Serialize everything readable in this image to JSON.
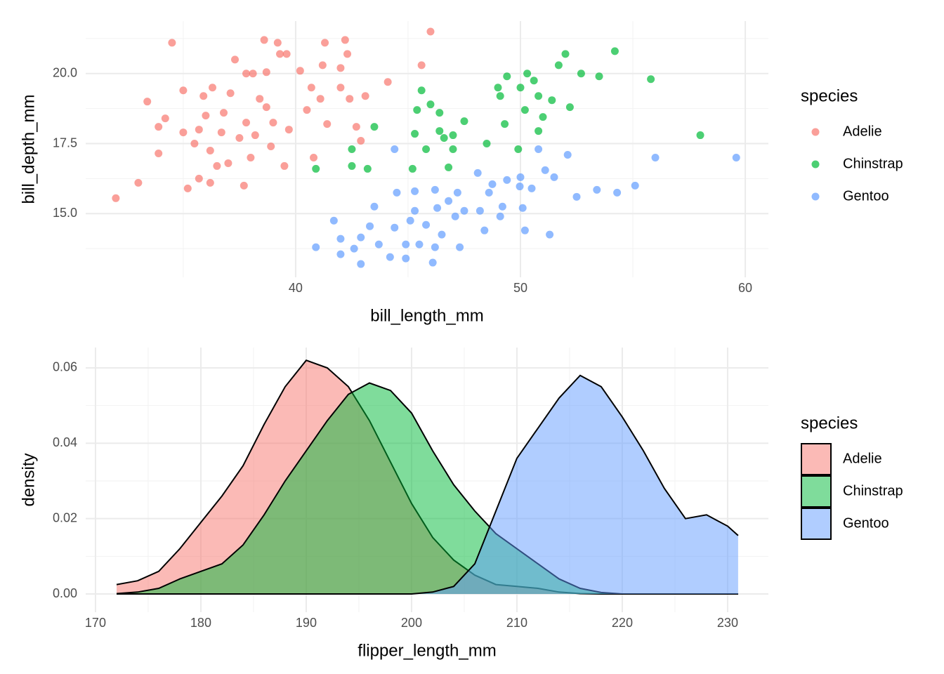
{
  "chart_data": [
    {
      "type": "scatter",
      "x_label": "bill_length_mm",
      "y_label": "bill_depth_mm",
      "legend_title": "species",
      "xlim": [
        30.66,
        61.03
      ],
      "ylim": [
        12.725,
        21.875
      ],
      "xticks": [
        40,
        50,
        60
      ],
      "yticks": [
        {
          "value": 15,
          "label": "15.0"
        },
        17.5,
        {
          "value": 20,
          "label": "20.0"
        }
      ],
      "grid": true,
      "legend": "right",
      "series": [
        {
          "name": "Adelie",
          "color": "#F8766D",
          "x": [
            32.0,
            33.0,
            33.4,
            34.5,
            33.9,
            34.2,
            33.9,
            35.0,
            35.0,
            35.2,
            35.7,
            35.5,
            35.7,
            35.9,
            36.0,
            36.2,
            36.2,
            36.3,
            36.7,
            36.8,
            37.0,
            37.1,
            37.3,
            37.5,
            37.7,
            37.8,
            38.0,
            38.2,
            37.8,
            38.1,
            38.6,
            39.2,
            38.7,
            38.9,
            39.0,
            39.3,
            39.6,
            39.5,
            39.7,
            40.2,
            40.5,
            40.7,
            40.8,
            41.3,
            41.2,
            41.1,
            41.4,
            42.0,
            42.0,
            42.2,
            42.3,
            42.4,
            42.7,
            42.9,
            43.1,
            44.1,
            46.0,
            45.6,
            38.7,
            38.4,
            36.5
          ],
          "values": [
            15.55,
            16.1,
            19.0,
            21.1,
            18.1,
            18.4,
            17.15,
            19.4,
            17.9,
            15.9,
            16.25,
            17.5,
            18.0,
            19.2,
            18.5,
            17.25,
            16.1,
            19.5,
            17.9,
            18.6,
            16.8,
            19.3,
            20.5,
            17.7,
            16.0,
            18.25,
            17.0,
            17.8,
            20.0,
            20.0,
            21.2,
            21.1,
            18.8,
            17.4,
            18.25,
            20.7,
            20.7,
            16.7,
            18.0,
            20.1,
            18.7,
            19.5,
            17.0,
            21.1,
            20.3,
            19.1,
            18.2,
            20.2,
            19.5,
            21.2,
            20.7,
            19.1,
            18.1,
            17.6,
            19.2,
            19.7,
            21.5,
            20.3,
            20.05,
            19.1,
            16.7
          ]
        },
        {
          "name": "Chinstrap",
          "color": "#00BA38",
          "x": [
            40.9,
            42.5,
            42.5,
            43.2,
            43.5,
            45.2,
            45.6,
            45.4,
            45.3,
            45.8,
            46.0,
            46.4,
            46.4,
            46.6,
            46.8,
            47.0,
            47.5,
            47.0,
            48.5,
            49.0,
            49.1,
            49.4,
            49.3,
            49.9,
            50.0,
            50.3,
            50.2,
            50.6,
            50.8,
            50.8,
            51.0,
            51.4,
            51.7,
            52.0,
            52.2,
            52.7,
            53.5,
            54.2,
            55.8,
            58.0
          ],
          "values": [
            16.6,
            17.3,
            16.7,
            16.6,
            18.1,
            16.6,
            19.4,
            18.7,
            17.85,
            17.3,
            18.9,
            18.6,
            17.95,
            17.7,
            16.65,
            17.8,
            18.3,
            17.3,
            17.5,
            19.5,
            19.2,
            19.9,
            18.2,
            17.3,
            19.5,
            20.0,
            18.7,
            19.75,
            19.2,
            17.95,
            18.45,
            19.05,
            20.3,
            20.7,
            18.8,
            20.0,
            19.9,
            20.8,
            19.8,
            17.8
          ]
        },
        {
          "name": "Gentoo",
          "color": "#619CFF",
          "x": [
            44.4,
            40.9,
            41.7,
            42.0,
            42.6,
            42.9,
            43.5,
            43.3,
            43.7,
            42.9,
            44.2,
            44.5,
            44.4,
            44.9,
            44.9,
            45.1,
            45.3,
            45.3,
            45.5,
            45.8,
            46.1,
            46.2,
            46.3,
            46.5,
            46.8,
            47.1,
            47.3,
            47.2,
            47.5,
            48.1,
            48.2,
            48.4,
            48.6,
            48.75,
            49.2,
            49.1,
            49.4,
            49.97,
            50.0,
            50.1,
            50.2,
            50.5,
            50.8,
            51.1,
            51.3,
            51.5,
            52.1,
            52.5,
            53.4,
            54.3,
            55.1,
            56.0,
            59.6,
            42.0,
            46.2
          ],
          "values": [
            17.3,
            13.8,
            14.75,
            13.55,
            13.75,
            14.15,
            15.25,
            14.55,
            13.9,
            13.2,
            13.45,
            15.75,
            14.5,
            13.9,
            13.4,
            14.75,
            15.8,
            15.1,
            13.9,
            14.6,
            13.25,
            15.85,
            15.2,
            14.25,
            15.45,
            14.9,
            13.8,
            15.75,
            15.1,
            16.45,
            15.1,
            14.4,
            15.75,
            16.05,
            15.25,
            14.9,
            16.2,
            15.97,
            16.3,
            15.2,
            14.4,
            15.9,
            17.3,
            16.55,
            14.25,
            16.3,
            17.1,
            15.6,
            15.85,
            15.75,
            16.0,
            17.0,
            17.0,
            14.1,
            13.8
          ]
        }
      ]
    },
    {
      "type": "area",
      "x_label": "flipper_length_mm",
      "y_label": "density",
      "legend_title": "species",
      "xlim": [
        169.07,
        233.87
      ],
      "ylim": [
        -0.00484,
        0.0654
      ],
      "xticks": [
        170,
        180,
        190,
        200,
        210,
        220,
        230
      ],
      "yticks": [
        {
          "value": 0,
          "label": "0.00"
        },
        {
          "value": 0.02,
          "label": "0.02"
        },
        {
          "value": 0.04,
          "label": "0.04"
        },
        {
          "value": 0.06,
          "label": "0.06"
        }
      ],
      "grid": true,
      "legend": "right",
      "x": [
        172,
        174,
        176,
        178,
        180,
        182,
        184,
        186,
        188,
        190,
        192,
        194,
        196,
        198,
        200,
        202,
        204,
        206,
        208,
        210,
        212,
        214,
        216,
        218,
        220,
        222,
        224,
        226,
        228,
        230,
        231
      ],
      "series": [
        {
          "name": "Adelie",
          "color": "#F8766D",
          "values": [
            0.0025,
            0.0035,
            0.006,
            0.012,
            0.019,
            0.026,
            0.034,
            0.045,
            0.055,
            0.062,
            0.06,
            0.055,
            0.046,
            0.035,
            0.024,
            0.015,
            0.009,
            0.005,
            0.0025,
            0.002,
            0.0015,
            0.0005,
            0.0001,
            0,
            0,
            0,
            0,
            0,
            0,
            0,
            0
          ]
        },
        {
          "name": "Chinstrap",
          "color": "#00BA38",
          "values": [
            0.0001,
            0.0005,
            0.0015,
            0.004,
            0.006,
            0.008,
            0.013,
            0.021,
            0.03,
            0.038,
            0.046,
            0.053,
            0.056,
            0.054,
            0.048,
            0.038,
            0.029,
            0.022,
            0.016,
            0.012,
            0.008,
            0.004,
            0.0015,
            0.0004,
            0,
            0,
            0,
            0,
            0,
            0,
            0
          ]
        },
        {
          "name": "Gentoo",
          "color": "#619CFF",
          "values": [
            0,
            0,
            0,
            0,
            0,
            0,
            0,
            0,
            0,
            0,
            0,
            0,
            0,
            0,
            0,
            0.0005,
            0.002,
            0.008,
            0.022,
            0.036,
            0.044,
            0.052,
            0.058,
            0.055,
            0.047,
            0.038,
            0.028,
            0.02,
            0.021,
            0.018,
            0.0155
          ]
        }
      ]
    }
  ]
}
